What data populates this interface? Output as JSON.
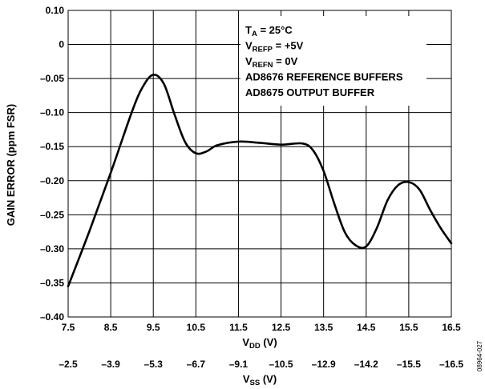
{
  "chart_data": {
    "type": "line",
    "xlabel": {
      "main": "V",
      "sub": "DD",
      "unit": " (V)"
    },
    "x2label": {
      "main": "V",
      "sub": "SS",
      "unit": " (V)"
    },
    "ylabel": "GAIN ERROR (ppm FSR)",
    "xlim": [
      7.5,
      16.5
    ],
    "ylim": [
      -0.4,
      0.1
    ],
    "x_ticks": [
      "7.5",
      "8.5",
      "9.5",
      "10.5",
      "11.5",
      "12.5",
      "13.5",
      "14.5",
      "15.5",
      "16.5"
    ],
    "x2_ticks": [
      "–2.5",
      "–3.9",
      "–5.3",
      "–6.7",
      "–9.1",
      "–10.5",
      "–12.9",
      "–14.2",
      "–15.5",
      "–16.5"
    ],
    "y_ticks": [
      "0.10",
      "0",
      "–0.05",
      "–0.10",
      "–0.15",
      "–0.20",
      "–0.25",
      "–0.30",
      "–0.35",
      "–0.40"
    ],
    "grid": true,
    "annotations": [
      {
        "main": "T",
        "sub": "A",
        "rest": " = 25°C"
      },
      {
        "main": "V",
        "sub": "REFP",
        "rest": " = +5V"
      },
      {
        "main": "V",
        "sub": "REFN",
        "rest": " = 0V"
      },
      {
        "main": "AD8676 REFERENCE BUFFERS",
        "sub": "",
        "rest": ""
      },
      {
        "main": "AD8675 OUTPUT BUFFER",
        "sub": "",
        "rest": ""
      }
    ],
    "figure_id": "08964-027",
    "series": [
      {
        "x": [
          7.5,
          8.0,
          8.5,
          9.0,
          9.25,
          9.5,
          9.75,
          10.0,
          10.25,
          10.5,
          10.75,
          11.0,
          11.5,
          12.0,
          12.5,
          13.0,
          13.25,
          13.5,
          13.75,
          14.0,
          14.25,
          14.5,
          14.75,
          15.0,
          15.25,
          15.5,
          15.75,
          16.0,
          16.25,
          16.5
        ],
        "y": [
          -0.35,
          -0.26,
          -0.165,
          -0.065,
          -0.025,
          -0.005,
          -0.02,
          -0.07,
          -0.115,
          -0.133,
          -0.13,
          -0.12,
          -0.114,
          -0.116,
          -0.119,
          -0.117,
          -0.128,
          -0.162,
          -0.215,
          -0.262,
          -0.283,
          -0.285,
          -0.255,
          -0.21,
          -0.185,
          -0.18,
          -0.192,
          -0.225,
          -0.255,
          -0.28
        ]
      }
    ]
  }
}
